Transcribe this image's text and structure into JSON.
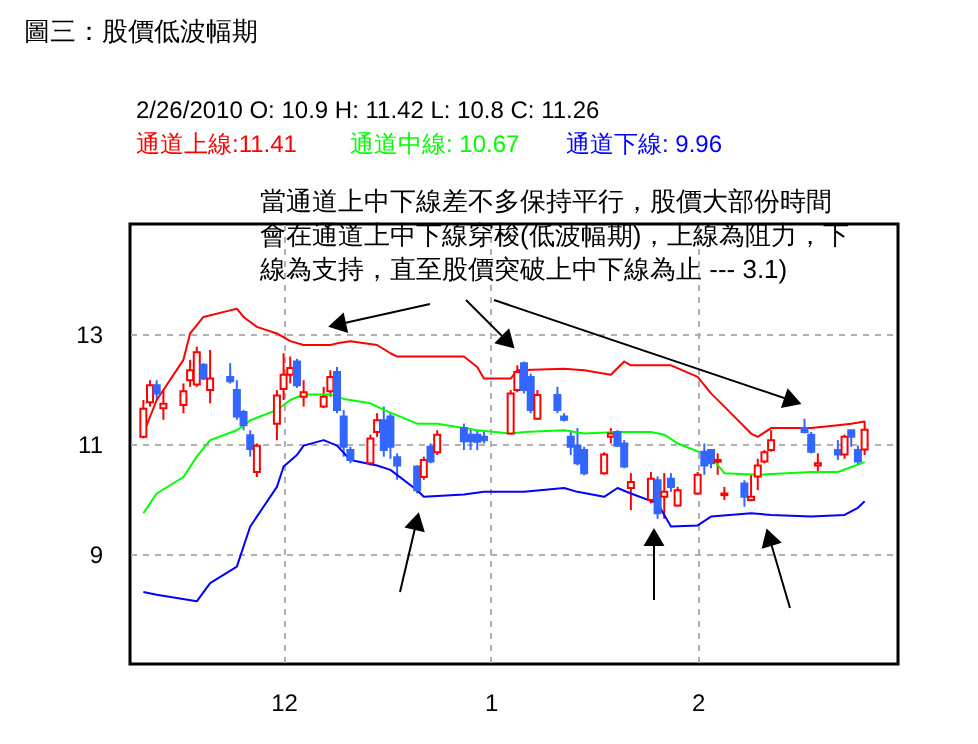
{
  "chart_data": {
    "type": "candlestick",
    "title": "圖三：股價低波幅期",
    "subtitle": "2/26/2010    O: 10.9    H: 11.42    L: 10.8    C: 11.26",
    "annotations": [
      "當通道上中下線差不多保持平行，股價大部份時間",
      "會在通道上中下線穿梭(低波幅期)，上線為阻力，下",
      "線為支持，直至股價突破上中下線為止 --- 3.1)"
    ],
    "x": [
      "2009-11-10",
      "2009-11-11",
      "2009-11-12",
      "2009-11-13",
      "2009-11-16",
      "2009-11-17",
      "2009-11-18",
      "2009-11-19",
      "2009-11-20",
      "2009-11-23",
      "2009-11-24",
      "2009-11-25",
      "2009-11-26",
      "2009-11-27",
      "2009-11-30",
      "2009-12-01",
      "2009-12-02",
      "2009-12-03",
      "2009-12-04",
      "2009-12-07",
      "2009-12-08",
      "2009-12-09",
      "2009-12-10",
      "2009-12-11",
      "2009-12-14",
      "2009-12-15",
      "2009-12-16",
      "2009-12-17",
      "2009-12-18",
      "2009-12-21",
      "2009-12-22",
      "2009-12-23",
      "2009-12-24",
      "2009-12-28",
      "2009-12-29",
      "2009-12-30",
      "2009-12-31",
      "2010-01-04",
      "2010-01-05",
      "2010-01-06",
      "2010-01-07",
      "2010-01-08",
      "2010-01-11",
      "2010-01-12",
      "2010-01-13",
      "2010-01-14",
      "2010-01-15",
      "2010-01-18",
      "2010-01-19",
      "2010-01-20",
      "2010-01-21",
      "2010-01-22",
      "2010-01-25",
      "2010-01-26",
      "2010-01-27",
      "2010-01-28",
      "2010-01-29",
      "2010-02-01",
      "2010-02-02",
      "2010-02-03",
      "2010-02-04",
      "2010-02-05",
      "2010-02-08",
      "2010-02-09",
      "2010-02-10",
      "2010-02-11",
      "2010-02-12",
      "2010-02-17",
      "2010-02-18",
      "2010-02-19",
      "2010-02-22",
      "2010-02-23",
      "2010-02-24",
      "2010-02-25",
      "2010-02-26"
    ],
    "colors": [
      "#ff0000",
      "#ff0000",
      "#3366ff",
      "#ff0000",
      "#ff0000",
      "#ff0000",
      "#ff0000",
      "#3366ff",
      "#ff0000",
      "#3366ff",
      "#3366ff",
      "#3366ff",
      "#3366ff",
      "#ff0000",
      "#ff0000",
      "#ff0000",
      "#ff0000",
      "#3366ff",
      "#ff0000",
      "#ff0000",
      "#ff0000",
      "#3366ff",
      "#3366ff",
      "#3366ff",
      "#ff0000",
      "#ff0000",
      "#3366ff",
      "#3366ff",
      "#3366ff",
      "#3366ff",
      "#ff0000",
      "#3366ff",
      "#ff0000",
      "#3366ff",
      "#3366ff",
      "#3366ff",
      "#3366ff",
      "#ff0000",
      "#ff0000",
      "#3366ff",
      "#3366ff",
      "#ff0000",
      "#3366ff",
      "#3366ff",
      "#3366ff",
      "#3366ff",
      "#3366ff",
      "#ff0000",
      "#ff0000",
      "#3366ff",
      "#3366ff",
      "#ff0000",
      "#ff0000",
      "#3366ff",
      "#ff0000",
      "#3366ff",
      "#ff0000",
      "#ff0000",
      "#3366ff",
      "#3366ff",
      "#ff0000",
      "#ff0000",
      "#3366ff",
      "#ff0000",
      "#ff0000",
      "#ff0000",
      "#ff0000",
      "#3366ff",
      "#3366ff",
      "#ff0000",
      "#3366ff",
      "#ff0000",
      "#3366ff",
      "#3366ff",
      "#ff0000"
    ],
    "ohlc": [
      [
        11.13,
        11.8,
        11.1,
        11.64
      ],
      [
        11.76,
        12.16,
        11.68,
        12.07
      ],
      [
        12.07,
        12.16,
        11.8,
        11.92
      ],
      [
        11.65,
        11.98,
        11.44,
        11.73
      ],
      [
        11.71,
        12.1,
        11.56,
        11.96
      ],
      [
        12.16,
        12.53,
        12.04,
        12.34
      ],
      [
        12.08,
        12.77,
        12.04,
        12.67
      ],
      [
        12.44,
        12.47,
        12.16,
        12.19
      ],
      [
        11.98,
        12.71,
        11.74,
        12.19
      ],
      [
        12.22,
        12.47,
        12.1,
        12.14
      ],
      [
        11.98,
        12.16,
        11.44,
        11.5
      ],
      [
        11.58,
        11.62,
        11.25,
        11.34
      ],
      [
        11.16,
        11.25,
        10.77,
        10.91
      ],
      [
        10.49,
        11.01,
        10.4,
        10.97
      ],
      [
        11.37,
        11.98,
        11.07,
        11.88
      ],
      [
        12.0,
        12.65,
        11.8,
        12.26
      ],
      [
        12.26,
        12.59,
        12.1,
        12.38
      ],
      [
        12.5,
        12.55,
        12.02,
        12.07
      ],
      [
        11.86,
        12.16,
        11.68,
        11.94
      ],
      [
        11.68,
        12.04,
        11.65,
        11.86
      ],
      [
        11.96,
        12.34,
        11.86,
        12.22
      ],
      [
        12.31,
        12.4,
        11.56,
        11.62
      ],
      [
        11.5,
        11.62,
        10.77,
        10.95
      ],
      [
        10.89,
        10.95,
        10.65,
        10.71
      ],
      [
        10.65,
        11.17,
        10.61,
        11.1
      ],
      [
        11.22,
        11.56,
        11.13,
        11.43
      ],
      [
        11.43,
        11.68,
        10.77,
        10.89
      ],
      [
        11.5,
        11.56,
        10.73,
        10.95
      ],
      [
        10.76,
        10.83,
        10.35,
        10.61
      ],
      [
        10.59,
        10.61,
        10.1,
        10.16
      ],
      [
        10.4,
        10.77,
        10.35,
        10.71
      ],
      [
        10.95,
        11.01,
        10.65,
        10.68
      ],
      [
        10.85,
        11.25,
        10.8,
        11.17
      ],
      [
        11.29,
        11.37,
        10.89,
        11.05
      ],
      [
        11.17,
        11.29,
        10.89,
        11.05
      ],
      [
        11.17,
        11.25,
        10.89,
        11.04
      ],
      [
        11.13,
        11.22,
        11.01,
        11.07
      ],
      [
        11.19,
        11.98,
        11.17,
        11.92
      ],
      [
        11.98,
        12.43,
        11.94,
        12.31
      ],
      [
        12.47,
        12.5,
        11.92,
        11.98
      ],
      [
        12.22,
        12.28,
        11.56,
        11.62
      ],
      [
        11.46,
        11.98,
        11.44,
        11.89
      ],
      [
        11.89,
        12.04,
        11.56,
        11.62
      ],
      [
        11.5,
        11.56,
        11.41,
        11.44
      ],
      [
        11.13,
        11.25,
        10.8,
        10.95
      ],
      [
        10.97,
        11.29,
        10.61,
        10.65
      ],
      [
        10.89,
        10.95,
        10.43,
        10.47
      ],
      [
        10.47,
        10.85,
        10.44,
        10.81
      ],
      [
        11.13,
        11.29,
        11.01,
        11.19
      ],
      [
        11.22,
        11.25,
        10.95,
        10.97
      ],
      [
        11.01,
        11.07,
        10.56,
        10.59
      ],
      [
        10.2,
        10.47,
        9.8,
        10.31
      ],
      [
        9.98,
        10.49,
        9.92,
        10.37
      ],
      [
        10.34,
        10.41,
        9.64,
        9.74
      ],
      [
        10.04,
        10.47,
        9.64,
        10.13
      ],
      [
        10.37,
        10.47,
        10.13,
        10.22
      ],
      [
        9.88,
        10.22,
        9.86,
        10.16
      ],
      [
        10.1,
        10.49,
        10.08,
        10.44
      ],
      [
        10.86,
        11.01,
        10.44,
        10.61
      ],
      [
        10.89,
        10.89,
        10.56,
        10.65
      ],
      [
        10.68,
        10.83,
        10.44,
        10.71
      ],
      [
        10.07,
        10.22,
        9.98,
        10.1
      ],
      [
        10.28,
        10.34,
        9.86,
        10.04
      ],
      [
        9.98,
        10.44,
        9.96,
        10.04
      ],
      [
        10.41,
        10.73,
        10.16,
        10.61
      ],
      [
        10.68,
        10.89,
        10.65,
        10.85
      ],
      [
        10.89,
        11.25,
        10.86,
        11.07
      ],
      [
        11.29,
        11.46,
        11.19,
        11.22
      ],
      [
        11.17,
        11.22,
        10.83,
        10.86
      ],
      [
        10.61,
        10.83,
        10.47,
        10.65
      ],
      [
        10.89,
        11.07,
        10.71,
        10.81
      ],
      [
        10.81,
        11.17,
        10.73,
        11.13
      ],
      [
        11.25,
        11.25,
        10.95,
        11.13
      ],
      [
        10.89,
        10.97,
        10.61,
        10.68
      ],
      [
        10.9,
        11.42,
        10.8,
        11.26
      ]
    ],
    "series": [
      {
        "type": "line",
        "name": "通道上線:11.41",
        "color": "#ff0000",
        "x": [
          "2009-11-10",
          "2009-11-12",
          "2009-11-16",
          "2009-11-17",
          "2009-11-19",
          "2009-11-23",
          "2009-11-24",
          "2009-11-25",
          "2009-11-27",
          "2009-11-30",
          "2009-12-02",
          "2009-12-04",
          "2009-12-08",
          "2009-12-09",
          "2009-12-11",
          "2009-12-15",
          "2009-12-17",
          "2009-12-18",
          "2009-12-28",
          "2009-12-30",
          "2009-12-31",
          "2010-01-04",
          "2010-01-05",
          "2010-01-12",
          "2010-01-15",
          "2010-01-19",
          "2010-01-21",
          "2010-01-22",
          "2010-01-28",
          "2010-02-01",
          "2010-02-03",
          "2010-02-05",
          "2010-02-09",
          "2010-02-10",
          "2010-02-12",
          "2010-02-18",
          "2010-02-22",
          "2010-02-24",
          "2010-02-26"
        ],
        "values": [
          11.19,
          11.8,
          12.53,
          13.01,
          13.31,
          13.43,
          13.46,
          13.31,
          13.13,
          13.01,
          12.87,
          12.8,
          12.8,
          12.83,
          12.87,
          12.8,
          12.65,
          12.59,
          12.59,
          12.4,
          12.19,
          12.19,
          12.34,
          12.37,
          12.34,
          12.26,
          12.5,
          12.43,
          12.43,
          12.22,
          11.92,
          11.68,
          11.19,
          11.13,
          11.29,
          11.29,
          11.34,
          11.37,
          11.41
        ]
      },
      {
        "type": "line",
        "name": "通道中線: 10.67",
        "color": "#00ff00",
        "x": [
          "2009-11-10",
          "2009-11-12",
          "2009-11-16",
          "2009-11-18",
          "2009-11-20",
          "2009-11-24",
          "2009-11-26",
          "2009-11-30",
          "2009-12-02",
          "2009-12-04",
          "2009-12-08",
          "2009-12-10",
          "2009-12-14",
          "2009-12-16",
          "2009-12-21",
          "2009-12-24",
          "2009-12-30",
          "2010-01-04",
          "2010-01-06",
          "2010-01-12",
          "2010-01-15",
          "2010-01-20",
          "2010-01-25",
          "2010-01-27",
          "2010-01-29",
          "2010-02-03",
          "2010-02-05",
          "2010-02-10",
          "2010-02-18",
          "2010-02-22",
          "2010-02-26"
        ],
        "values": [
          9.74,
          10.1,
          10.4,
          10.77,
          11.07,
          11.25,
          11.43,
          11.62,
          11.8,
          11.9,
          11.9,
          11.82,
          11.74,
          11.62,
          11.37,
          11.37,
          11.25,
          11.19,
          11.22,
          11.25,
          11.19,
          11.22,
          11.22,
          11.17,
          11.01,
          10.77,
          10.47,
          10.44,
          10.49,
          10.49,
          10.67
        ]
      },
      {
        "type": "line",
        "name": "通道下線: 9.96",
        "color": "#0000ff",
        "x": [
          "2009-11-10",
          "2009-11-12",
          "2009-11-18",
          "2009-11-20",
          "2009-11-24",
          "2009-11-26",
          "2009-11-30",
          "2009-12-01",
          "2009-12-03",
          "2009-12-04",
          "2009-12-07",
          "2009-12-09",
          "2009-12-11",
          "2009-12-15",
          "2009-12-17",
          "2009-12-21",
          "2009-12-22",
          "2009-12-28",
          "2009-12-31",
          "2010-01-06",
          "2010-01-12",
          "2010-01-14",
          "2010-01-18",
          "2010-01-20",
          "2010-01-22",
          "2010-01-26",
          "2010-01-28",
          "2010-02-01",
          "2010-02-03",
          "2010-02-09",
          "2010-02-12",
          "2010-02-18",
          "2010-02-23",
          "2010-02-25",
          "2010-02-26"
        ],
        "values": [
          8.31,
          8.26,
          8.14,
          8.47,
          8.77,
          9.5,
          10.22,
          10.59,
          10.8,
          10.97,
          11.07,
          10.97,
          10.71,
          10.61,
          10.53,
          10.16,
          10.04,
          10.08,
          10.13,
          10.13,
          10.2,
          10.13,
          10.04,
          10.2,
          10.1,
          9.92,
          9.5,
          9.52,
          9.68,
          9.74,
          9.71,
          9.68,
          9.71,
          9.84,
          9.96
        ]
      }
    ],
    "xlim": [
      "2009-11-08",
      "2010-03-03"
    ],
    "xticks": [
      {
        "value": "2009-12",
        "label": "12"
      },
      {
        "value": "2010-01",
        "label": "1"
      },
      {
        "value": "2010-02",
        "label": "2"
      }
    ],
    "ylim": [
      7,
      15
    ],
    "yticks": [
      9,
      11,
      13
    ],
    "grid": true,
    "legend": "top"
  }
}
